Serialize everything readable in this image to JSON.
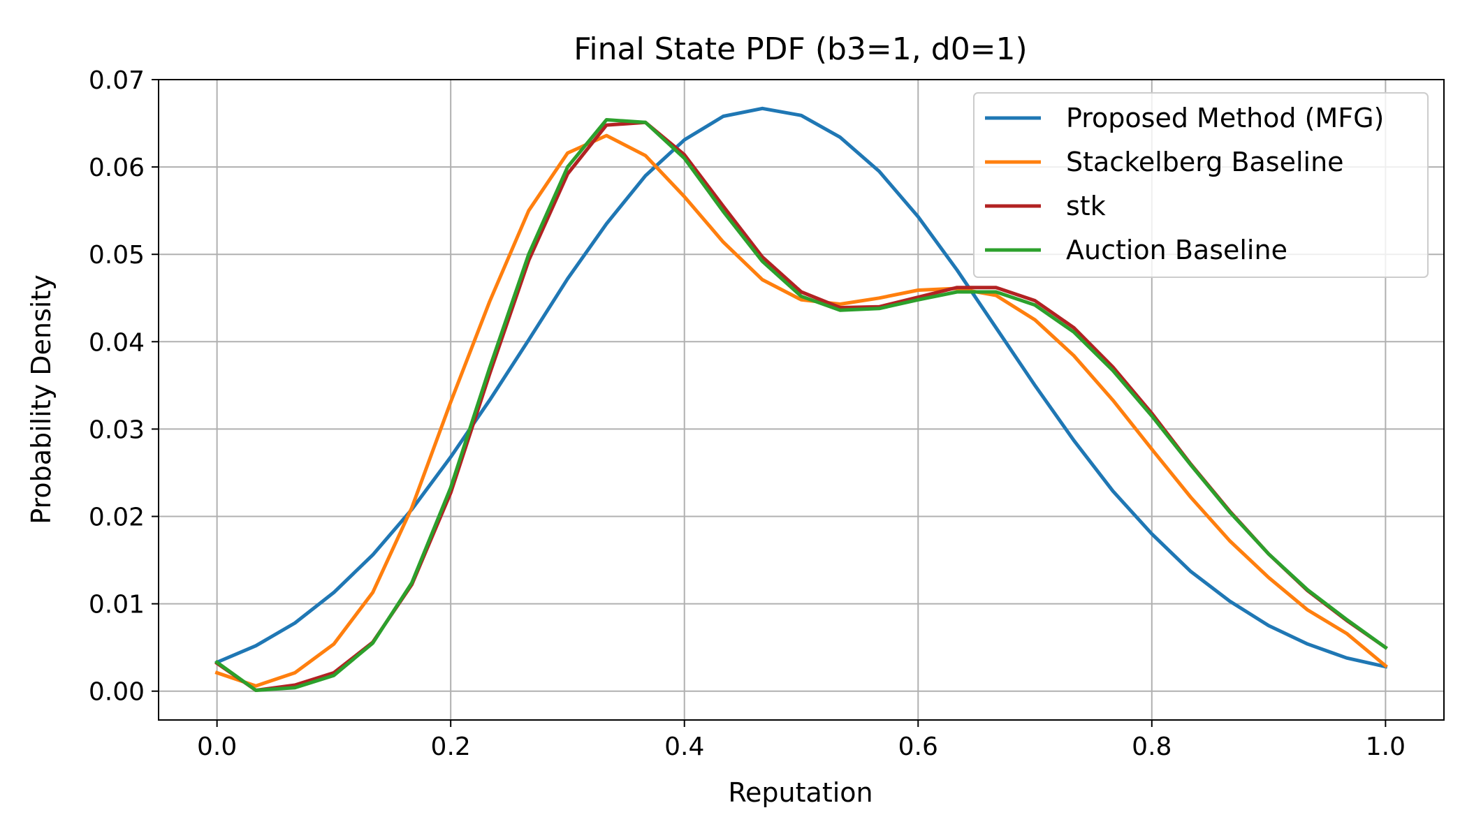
{
  "chart_data": {
    "type": "line",
    "title": "Final State PDF (b3=1, d0=1)",
    "xlabel": "Reputation",
    "ylabel": "Probability Density",
    "xlim": [
      -0.05,
      1.05
    ],
    "ylim": [
      -0.0033,
      0.07
    ],
    "xticks": [
      0.0,
      0.2,
      0.4,
      0.6,
      0.8,
      1.0
    ],
    "xtick_labels": [
      "0.0",
      "0.2",
      "0.4",
      "0.6",
      "0.8",
      "1.0"
    ],
    "yticks": [
      0.0,
      0.01,
      0.02,
      0.03,
      0.04,
      0.05,
      0.06,
      0.07
    ],
    "ytick_labels": [
      "0.00",
      "0.01",
      "0.02",
      "0.03",
      "0.04",
      "0.05",
      "0.06",
      "0.07"
    ],
    "grid": true,
    "legend_position": "top-right",
    "x": [
      0.0,
      0.0333,
      0.0667,
      0.1,
      0.1333,
      0.1667,
      0.2,
      0.2333,
      0.2667,
      0.3,
      0.3333,
      0.3667,
      0.4,
      0.4333,
      0.4667,
      0.5,
      0.5333,
      0.5667,
      0.6,
      0.6333,
      0.6667,
      0.7,
      0.7333,
      0.7667,
      0.8,
      0.8333,
      0.8667,
      0.9,
      0.9333,
      0.9667,
      1.0
    ],
    "series": [
      {
        "name": "Proposed Method (MFG)",
        "color": "#1f77b4",
        "values": [
          0.0033,
          0.0052,
          0.0078,
          0.0113,
          0.0156,
          0.0208,
          0.0268,
          0.0333,
          0.0402,
          0.0472,
          0.0535,
          0.059,
          0.0631,
          0.0658,
          0.0667,
          0.0659,
          0.0634,
          0.0595,
          0.0543,
          0.0482,
          0.0416,
          0.035,
          0.0287,
          0.0229,
          0.018,
          0.0137,
          0.0103,
          0.0075,
          0.0054,
          0.0038,
          0.0028
        ]
      },
      {
        "name": "Stackelberg Baseline",
        "color": "#ff7f0e",
        "values": [
          0.0021,
          0.0006,
          0.0021,
          0.0054,
          0.0113,
          0.021,
          0.0331,
          0.0446,
          0.055,
          0.0616,
          0.0636,
          0.0613,
          0.0566,
          0.0514,
          0.0471,
          0.0448,
          0.0443,
          0.045,
          0.0459,
          0.0461,
          0.0453,
          0.0425,
          0.0384,
          0.0333,
          0.0277,
          0.0222,
          0.0172,
          0.013,
          0.0093,
          0.0066,
          0.0029
        ]
      },
      {
        "name": "stk",
        "color": "#b22222",
        "values": [
          0.0032,
          0.0001,
          0.0007,
          0.0021,
          0.0056,
          0.0122,
          0.0227,
          0.0363,
          0.0493,
          0.0592,
          0.0648,
          0.0651,
          0.0614,
          0.0555,
          0.0497,
          0.0457,
          0.0439,
          0.044,
          0.0451,
          0.0462,
          0.0462,
          0.0447,
          0.0416,
          0.0371,
          0.0318,
          0.026,
          0.0206,
          0.0157,
          0.0115,
          0.0081,
          0.005
        ]
      },
      {
        "name": "Auction Baseline",
        "color": "#2ca02c",
        "values": [
          0.0033,
          0.0001,
          0.0004,
          0.0018,
          0.0055,
          0.0124,
          0.0233,
          0.037,
          0.05,
          0.06,
          0.0654,
          0.0651,
          0.061,
          0.0549,
          0.0492,
          0.0452,
          0.0436,
          0.0438,
          0.0448,
          0.0457,
          0.0457,
          0.0442,
          0.0411,
          0.0367,
          0.0315,
          0.0259,
          0.0205,
          0.0157,
          0.0116,
          0.0082,
          0.005
        ]
      }
    ]
  }
}
